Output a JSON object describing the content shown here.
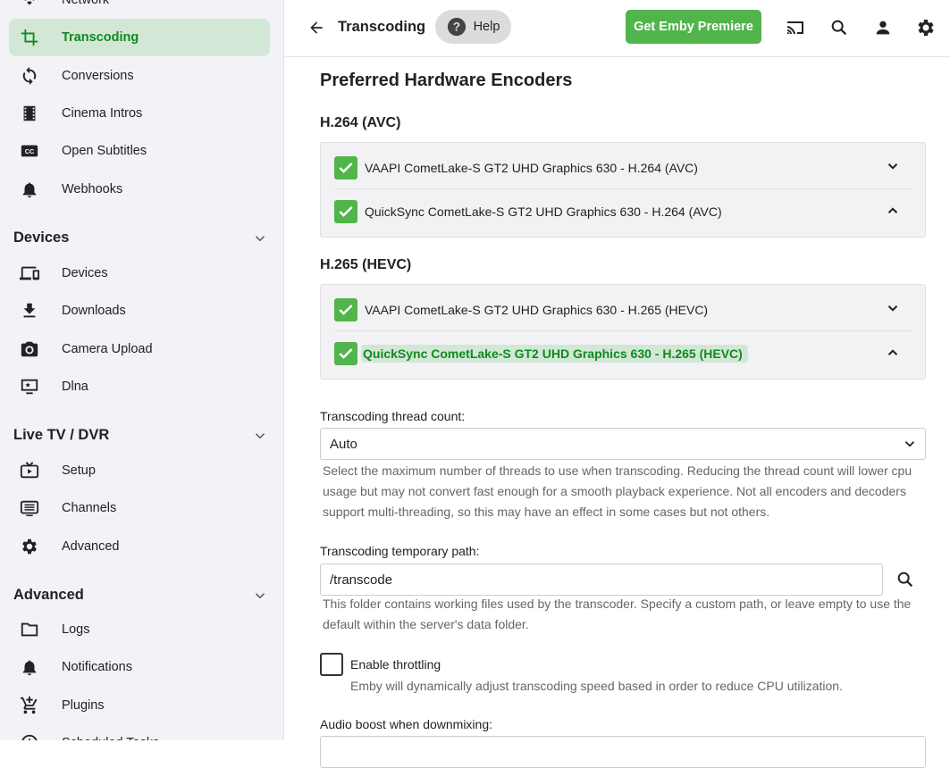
{
  "sidebar": {
    "top_items": [
      {
        "label": "Network",
        "icon": "wifi-icon"
      },
      {
        "label": "Transcoding",
        "icon": "crop-icon",
        "active": true
      },
      {
        "label": "Conversions",
        "icon": "sync-icon"
      },
      {
        "label": "Cinema Intros",
        "icon": "film-icon"
      },
      {
        "label": "Open Subtitles",
        "icon": "closed-caption-icon"
      },
      {
        "label": "Webhooks",
        "icon": "bell-icon"
      }
    ],
    "devices": {
      "title": "Devices",
      "items": [
        {
          "label": "Devices",
          "icon": "devices-icon"
        },
        {
          "label": "Downloads",
          "icon": "download-icon"
        },
        {
          "label": "Camera Upload",
          "icon": "camera-icon"
        },
        {
          "label": "Dlna",
          "icon": "dlna-icon"
        }
      ]
    },
    "livetv": {
      "title": "Live TV / DVR",
      "items": [
        {
          "label": "Setup",
          "icon": "tv-icon"
        },
        {
          "label": "Channels",
          "icon": "list-icon"
        },
        {
          "label": "Advanced",
          "icon": "gear-icon"
        }
      ]
    },
    "advanced": {
      "title": "Advanced",
      "items": [
        {
          "label": "Logs",
          "icon": "folder-icon"
        },
        {
          "label": "Notifications",
          "icon": "bell-icon"
        },
        {
          "label": "Plugins",
          "icon": "cart-plus-icon"
        },
        {
          "label": "Scheduled Tasks",
          "icon": "clock-icon"
        }
      ]
    }
  },
  "header": {
    "title": "Transcoding",
    "help": "Help",
    "premiere": "Get Emby Premiere"
  },
  "colors": {
    "accent": "#52b54b",
    "active_text": "#0f8a1f",
    "active_bg": "#d2e7d6"
  },
  "main": {
    "title": "Preferred Hardware Encoders",
    "h264": {
      "title": "H.264 (AVC)",
      "items": [
        "VAAPI CometLake-S GT2 UHD Graphics 630 - H.264 (AVC)",
        "QuickSync CometLake-S GT2 UHD Graphics 630 - H.264 (AVC)"
      ]
    },
    "h265": {
      "title": "H.265 (HEVC)",
      "items": [
        "VAAPI CometLake-S GT2 UHD Graphics 630 - H.265 (HEVC)",
        "QuickSync CometLake-S GT2 UHD Graphics 630 - H.265 (HEVC)"
      ]
    },
    "thread": {
      "label": "Transcoding thread count:",
      "value": "Auto",
      "desc": "Select the maximum number of threads to use when transcoding. Reducing the thread count will lower cpu usage but may not convert fast enough for a smooth playback experience. Not all encoders and decoders support multi-threading, so this may have an effect in some cases but not others."
    },
    "path": {
      "label": "Transcoding temporary path:",
      "value": "/transcode",
      "desc": "This folder contains working files used by the transcoder. Specify a custom path, or leave empty to use the default within the server's data folder."
    },
    "throttle": {
      "label": "Enable throttling",
      "checked": false,
      "desc": "Emby will dynamically adjust transcoding speed based in order to reduce CPU utilization."
    },
    "audio_boost": {
      "label": "Audio boost when downmixing:"
    }
  }
}
